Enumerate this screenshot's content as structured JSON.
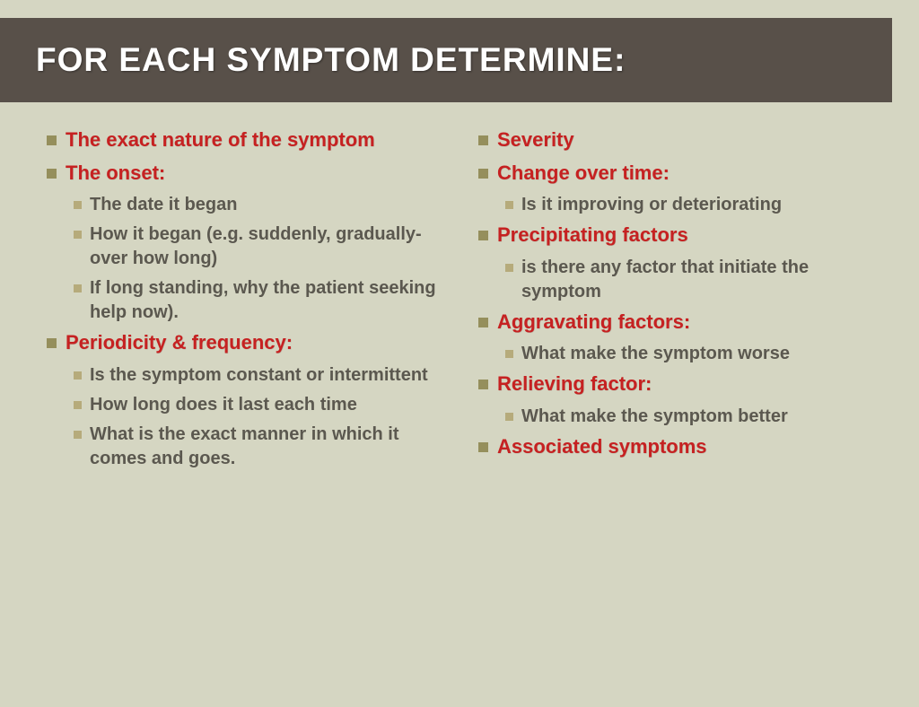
{
  "title": "FOR EACH SYMPTOM DETERMINE:",
  "colors": {
    "background": "#d5d6c2",
    "title_bar": "#585049",
    "title_text": "#ffffff",
    "main_text": "#c62121",
    "sub_text": "#5b584f",
    "main_bullet": "#958f5c",
    "sub_bullet": "#b6ab7b"
  },
  "fonts": {
    "title_size": 37,
    "main_size": 22,
    "sub_size": 20
  },
  "left": {
    "i0": {
      "text": "The exact nature of the symptom"
    },
    "i1": {
      "text": "The onset:",
      "s0": "The date it began",
      "s1": "How it began (e.g. suddenly, gradually-over how long)",
      "s2": "If long standing, why the patient seeking help now)."
    },
    "i2": {
      "text": "Periodicity & frequency:",
      "s0": "Is the symptom constant or intermittent",
      "s1": "How long does it last each time",
      "s2": "What is the exact manner in which it comes and goes."
    }
  },
  "right": {
    "i0": {
      "text": "Severity"
    },
    "i1": {
      "text": "Change over time:",
      "s0": "Is it improving or deteriorating"
    },
    "i2": {
      "text": "Precipitating factors",
      "s0": "is there any factor that initiate the symptom"
    },
    "i3": {
      "text": "Aggravating factors:",
      "s0": "What make the symptom worse"
    },
    "i4": {
      "text": "Relieving factor:",
      "s0": "What make the symptom better"
    },
    "i5": {
      "text": "Associated symptoms"
    }
  }
}
